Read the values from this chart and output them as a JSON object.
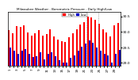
{
  "title": "Milwaukee Weather - Barometric Pressure - Daily High/Low",
  "xlim": [
    -0.5,
    29.5
  ],
  "ylim": [
    28.9,
    30.65
  ],
  "yticks": [
    29.0,
    29.5,
    30.0,
    30.5
  ],
  "ytick_labels": [
    "29.0",
    "29.5",
    "30.0",
    "30.5"
  ],
  "bar_width": 0.42,
  "high_color": "#ff0000",
  "low_color": "#0000cc",
  "bg_color": "#ffffff",
  "legend_high": "High",
  "legend_low": "Low",
  "highs": [
    30.05,
    29.95,
    30.18,
    30.15,
    30.2,
    29.98,
    29.88,
    29.95,
    30.05,
    29.88,
    29.92,
    30.08,
    29.85,
    29.75,
    29.7,
    29.68,
    29.82,
    29.95,
    30.08,
    30.22,
    30.32,
    30.5,
    30.45,
    30.38,
    30.25,
    30.08,
    29.98,
    29.85,
    30.2,
    30.28
  ],
  "lows": [
    29.5,
    29.38,
    29.3,
    29.38,
    29.45,
    29.28,
    29.18,
    29.22,
    29.35,
    29.12,
    29.28,
    29.35,
    29.2,
    29.08,
    29.02,
    29.0,
    29.15,
    29.25,
    29.38,
    29.52,
    29.62,
    29.72,
    29.65,
    29.5,
    29.38,
    29.28,
    29.25,
    29.0,
    29.3,
    29.42
  ],
  "x_labels": [
    "1",
    "",
    "3",
    "",
    "5",
    "",
    "7",
    "",
    "9",
    "",
    "11",
    "",
    "13",
    "",
    "15",
    "",
    "17",
    "",
    "19",
    "",
    "21",
    "",
    "23",
    "",
    "25",
    "",
    "27",
    "",
    "29",
    ""
  ],
  "highlight_start": 21,
  "highlight_end": 23
}
